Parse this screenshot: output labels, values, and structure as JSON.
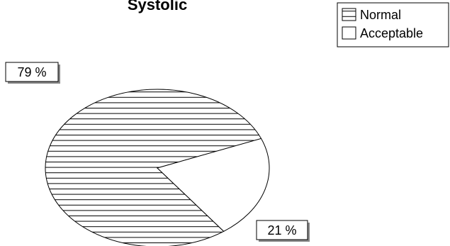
{
  "chart_data": {
    "type": "pie",
    "title": "Systolic",
    "categories": [
      "Normal",
      "Acceptable"
    ],
    "values": [
      79,
      21
    ],
    "data_labels": [
      "79 %",
      "21 %"
    ],
    "legend_entries": [
      "Normal",
      "Acceptable"
    ],
    "legend_position": "top-right",
    "fills": {
      "Normal": "horizontal-stripes",
      "Acceptable": "white"
    },
    "colors": {
      "stroke": "#000000",
      "background": "#ffffff",
      "label_shadow": "#888888"
    }
  }
}
